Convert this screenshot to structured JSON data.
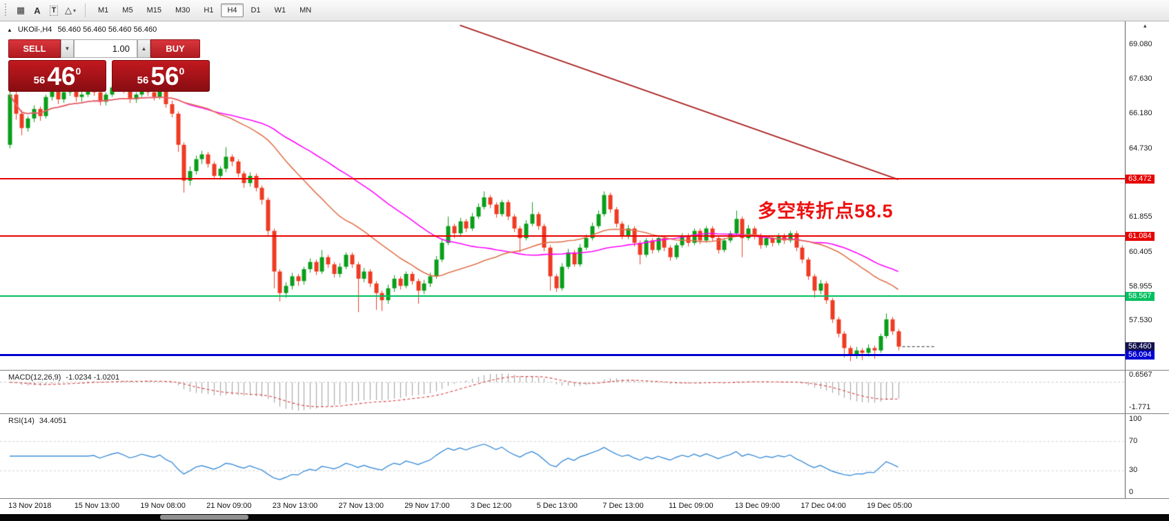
{
  "colors": {
    "bull": "#0a9e1a",
    "bear": "#ee3b22",
    "ma_slow": "#ff00ff",
    "ma_fast": "#e0714a",
    "trend": "#a81f1f",
    "macd_hist": "#a8a8a8",
    "macd_signal": "#d94040",
    "macd_zero": "#c6c6c6",
    "rsi_line": "#3e8ed8",
    "rsi_level": "#cfcfcf",
    "line_red": "#e60000",
    "line_green": "#00bf5f",
    "line_blue": "#0000cd",
    "price_marker": "#11114e",
    "current_dash": "#222222",
    "annotation_red": "#ee1111"
  },
  "toolbar": {
    "tools": [
      {
        "glyph": "▦",
        "name": "objects-grid-icon"
      },
      {
        "glyph": "A",
        "name": "text-tool-icon"
      },
      {
        "glyph": "T",
        "name": "text-label-tool-icon",
        "boxed": true
      },
      {
        "glyph": "△",
        "name": "shapes-tool-icon",
        "dropdown": true
      }
    ],
    "dropdown_glyph": "▾",
    "timeframes": [
      {
        "label": "M1"
      },
      {
        "label": "M5"
      },
      {
        "label": "M15"
      },
      {
        "label": "M30"
      },
      {
        "label": "H1"
      },
      {
        "label": "H4",
        "active": true
      },
      {
        "label": "D1"
      },
      {
        "label": "W1"
      },
      {
        "label": "MN"
      }
    ]
  },
  "chart": {
    "icon_glyph": "▲",
    "axis_icon": "▴",
    "symbol": "UKOil-,H4",
    "ohlc_line": "56.460 56.460 56.460 56.460",
    "current_price": 56.46,
    "annotation": {
      "text": "多空转折点58.5",
      "color": "#ee1111"
    },
    "trade_panel": {
      "sell": "SELL",
      "buy": "BUY",
      "volume": "1.00",
      "down_glyph": "▼",
      "up_glyph": "▲",
      "bid": {
        "prefix": "56",
        "big": "46",
        "sup": "0"
      },
      "ask": {
        "prefix": "56",
        "big": "56",
        "sup": "0"
      }
    },
    "price_axis": {
      "ticks": [
        {
          "text": "69.080",
          "price": 69.08
        },
        {
          "text": "67.630",
          "price": 67.63
        },
        {
          "text": "66.180",
          "price": 66.18
        },
        {
          "text": "64.730",
          "price": 64.73
        },
        {
          "text": "61.855",
          "price": 61.855
        },
        {
          "text": "60.405",
          "price": 60.405
        },
        {
          "text": "58.955",
          "price": 58.955
        },
        {
          "text": "57.530",
          "price": 57.53
        }
      ],
      "line_labels": [
        {
          "text": "63.472",
          "price": 63.472,
          "bg": "#e60000"
        },
        {
          "text": "61.084",
          "price": 61.084,
          "bg": "#e60000"
        },
        {
          "text": "58.567",
          "price": 58.567,
          "bg": "#00bf5f"
        },
        {
          "text": "56.460",
          "price": 56.46,
          "bg": "#11114e"
        },
        {
          "text": "56.094",
          "price": 56.094,
          "bg": "#0000d2"
        }
      ]
    },
    "hlines": [
      {
        "price": 63.472,
        "color": "#e60000",
        "w": 2
      },
      {
        "price": 61.084,
        "color": "#e60000",
        "w": 2
      },
      {
        "price": 58.567,
        "color": "#00bf5f",
        "w": 2
      },
      {
        "price": 56.094,
        "color": "#0000cd",
        "w": 3
      }
    ],
    "trendline": {
      "bar1": 75,
      "price1": 69.9,
      "bar2": 148,
      "price2": 63.45
    },
    "mas": [
      {
        "period": 45,
        "color": "#ff00ff"
      },
      {
        "period": 28,
        "color": "#e0714a"
      }
    ],
    "candles": [
      [
        64.9,
        67.35,
        64.75,
        67.0
      ],
      [
        67.0,
        67.2,
        65.95,
        66.2
      ],
      [
        66.2,
        66.35,
        65.3,
        65.6
      ],
      [
        65.6,
        66.1,
        65.45,
        66.0
      ],
      [
        66.0,
        66.55,
        65.85,
        66.4
      ],
      [
        66.4,
        66.5,
        65.9,
        66.1
      ],
      [
        66.1,
        67.0,
        66.0,
        66.9
      ],
      [
        66.9,
        67.35,
        66.75,
        67.2
      ],
      [
        67.2,
        67.3,
        66.6,
        66.8
      ],
      [
        66.8,
        67.25,
        66.65,
        67.1
      ],
      [
        67.1,
        67.45,
        66.95,
        67.3
      ],
      [
        67.3,
        67.4,
        66.7,
        66.9
      ],
      [
        66.9,
        67.15,
        66.7,
        67.0
      ],
      [
        67.0,
        67.55,
        66.9,
        67.4
      ],
      [
        67.4,
        67.5,
        66.95,
        67.1
      ],
      [
        67.1,
        67.2,
        66.55,
        66.7
      ],
      [
        66.7,
        67.1,
        66.55,
        67.0
      ],
      [
        67.0,
        67.4,
        66.9,
        67.3
      ],
      [
        67.3,
        67.6,
        67.15,
        67.5
      ],
      [
        67.5,
        67.55,
        67.05,
        67.2
      ],
      [
        67.2,
        67.3,
        66.65,
        66.8
      ],
      [
        66.8,
        67.1,
        66.65,
        67.0
      ],
      [
        67.0,
        67.4,
        66.9,
        67.3
      ],
      [
        67.3,
        67.4,
        66.95,
        67.1
      ],
      [
        67.1,
        67.2,
        66.75,
        66.9
      ],
      [
        66.9,
        67.3,
        66.8,
        67.2
      ],
      [
        67.2,
        67.25,
        66.45,
        66.6
      ],
      [
        66.6,
        66.75,
        66.05,
        66.2
      ],
      [
        66.2,
        66.3,
        64.6,
        64.9
      ],
      [
        64.9,
        65.0,
        62.9,
        63.4
      ],
      [
        63.4,
        64.0,
        63.2,
        63.8
      ],
      [
        63.8,
        64.45,
        63.65,
        64.3
      ],
      [
        64.3,
        64.65,
        64.1,
        64.5
      ],
      [
        64.5,
        64.6,
        63.95,
        64.1
      ],
      [
        64.1,
        64.2,
        63.45,
        63.6
      ],
      [
        63.6,
        64.0,
        63.45,
        63.9
      ],
      [
        63.9,
        64.8,
        63.75,
        64.4
      ],
      [
        64.4,
        64.5,
        64.0,
        64.2
      ],
      [
        64.2,
        64.3,
        63.55,
        63.7
      ],
      [
        63.7,
        63.8,
        63.1,
        63.3
      ],
      [
        63.3,
        63.75,
        63.15,
        63.6
      ],
      [
        63.6,
        63.7,
        62.95,
        63.1
      ],
      [
        63.1,
        63.2,
        62.4,
        62.6
      ],
      [
        62.6,
        62.7,
        61.1,
        61.3
      ],
      [
        61.3,
        61.4,
        58.9,
        59.6
      ],
      [
        59.6,
        59.7,
        58.35,
        58.7
      ],
      [
        58.7,
        59.15,
        58.5,
        59.0
      ],
      [
        59.0,
        59.55,
        58.85,
        59.4
      ],
      [
        59.4,
        59.5,
        59.0,
        59.2
      ],
      [
        59.2,
        59.8,
        59.05,
        59.7
      ],
      [
        59.7,
        60.15,
        59.55,
        60.0
      ],
      [
        60.0,
        60.1,
        59.45,
        59.6
      ],
      [
        59.6,
        60.5,
        59.5,
        60.2
      ],
      [
        60.2,
        60.3,
        59.75,
        59.9
      ],
      [
        59.9,
        60.0,
        59.35,
        59.5
      ],
      [
        59.5,
        59.95,
        59.35,
        59.8
      ],
      [
        59.8,
        60.4,
        59.7,
        60.3
      ],
      [
        60.3,
        60.4,
        59.75,
        59.9
      ],
      [
        59.9,
        60.0,
        57.9,
        59.3
      ],
      [
        59.3,
        59.75,
        59.15,
        59.6
      ],
      [
        59.6,
        59.7,
        58.95,
        59.1
      ],
      [
        59.1,
        59.2,
        58.0,
        58.7
      ],
      [
        58.7,
        58.8,
        57.95,
        58.4
      ],
      [
        58.4,
        59.05,
        58.25,
        58.9
      ],
      [
        58.9,
        59.45,
        58.75,
        59.3
      ],
      [
        59.3,
        59.4,
        58.85,
        59.0
      ],
      [
        59.0,
        59.6,
        58.9,
        59.5
      ],
      [
        59.5,
        59.6,
        59.05,
        59.2
      ],
      [
        59.2,
        59.3,
        58.25,
        58.8
      ],
      [
        58.8,
        59.25,
        58.65,
        59.1
      ],
      [
        59.1,
        59.55,
        58.95,
        59.4
      ],
      [
        59.4,
        60.25,
        59.3,
        60.1
      ],
      [
        60.1,
        60.95,
        60.0,
        60.8
      ],
      [
        60.8,
        61.9,
        60.7,
        61.5
      ],
      [
        61.5,
        61.6,
        61.0,
        61.2
      ],
      [
        61.2,
        61.85,
        61.05,
        61.7
      ],
      [
        61.7,
        61.8,
        61.25,
        61.4
      ],
      [
        61.4,
        62.05,
        61.3,
        61.9
      ],
      [
        61.9,
        62.45,
        61.8,
        62.3
      ],
      [
        62.3,
        62.95,
        62.2,
        62.7
      ],
      [
        62.7,
        62.8,
        62.25,
        62.4
      ],
      [
        62.4,
        62.5,
        61.85,
        62.0
      ],
      [
        62.0,
        62.6,
        61.9,
        62.5
      ],
      [
        62.5,
        62.6,
        61.75,
        61.9
      ],
      [
        61.9,
        62.0,
        61.25,
        61.4
      ],
      [
        61.4,
        61.5,
        60.4,
        61.0
      ],
      [
        61.0,
        61.75,
        60.9,
        61.6
      ],
      [
        61.6,
        62.5,
        61.5,
        62.0
      ],
      [
        62.0,
        62.1,
        61.35,
        61.5
      ],
      [
        61.5,
        61.6,
        60.45,
        60.6
      ],
      [
        60.6,
        60.7,
        58.8,
        59.4
      ],
      [
        59.4,
        59.5,
        58.75,
        58.9
      ],
      [
        58.9,
        59.95,
        58.8,
        59.8
      ],
      [
        59.8,
        60.55,
        59.7,
        60.4
      ],
      [
        60.4,
        60.5,
        59.8,
        59.9
      ],
      [
        59.9,
        60.75,
        59.8,
        60.6
      ],
      [
        60.6,
        61.15,
        60.5,
        61.0
      ],
      [
        61.0,
        61.65,
        60.9,
        61.5
      ],
      [
        61.5,
        62.15,
        61.4,
        62.0
      ],
      [
        62.0,
        62.95,
        61.9,
        62.8
      ],
      [
        62.8,
        62.9,
        62.05,
        62.2
      ],
      [
        62.2,
        62.3,
        61.45,
        61.6
      ],
      [
        61.6,
        61.7,
        60.95,
        61.1
      ],
      [
        61.1,
        61.55,
        60.95,
        61.4
      ],
      [
        61.4,
        61.5,
        60.65,
        60.8
      ],
      [
        60.8,
        60.9,
        59.9,
        60.3
      ],
      [
        60.3,
        61.0,
        60.2,
        60.9
      ],
      [
        60.9,
        61.0,
        60.35,
        60.5
      ],
      [
        60.5,
        61.1,
        60.4,
        61.0
      ],
      [
        61.0,
        61.1,
        60.45,
        60.6
      ],
      [
        60.6,
        60.7,
        60.05,
        60.2
      ],
      [
        60.2,
        60.8,
        60.1,
        60.7
      ],
      [
        60.7,
        61.2,
        60.6,
        61.1
      ],
      [
        61.1,
        61.2,
        60.65,
        60.8
      ],
      [
        60.8,
        61.4,
        60.7,
        61.3
      ],
      [
        61.3,
        61.4,
        60.75,
        60.9
      ],
      [
        60.9,
        61.5,
        60.8,
        61.4
      ],
      [
        61.4,
        61.5,
        60.85,
        61.0
      ],
      [
        61.0,
        61.1,
        60.35,
        60.5
      ],
      [
        60.5,
        61.0,
        60.4,
        60.9
      ],
      [
        60.9,
        61.3,
        60.8,
        61.2
      ],
      [
        61.2,
        62.15,
        61.1,
        61.8
      ],
      [
        61.8,
        61.9,
        60.2,
        61.0
      ],
      [
        61.0,
        61.55,
        60.9,
        61.4
      ],
      [
        61.4,
        61.5,
        60.95,
        61.1
      ],
      [
        61.1,
        61.2,
        60.55,
        60.7
      ],
      [
        60.7,
        61.1,
        60.6,
        61.0
      ],
      [
        61.0,
        61.1,
        60.65,
        60.8
      ],
      [
        60.8,
        61.2,
        60.7,
        61.1
      ],
      [
        61.1,
        61.2,
        60.75,
        60.9
      ],
      [
        60.9,
        61.3,
        60.8,
        61.2
      ],
      [
        61.2,
        61.3,
        60.45,
        60.6
      ],
      [
        60.6,
        60.7,
        59.95,
        60.1
      ],
      [
        60.1,
        60.2,
        59.25,
        59.4
      ],
      [
        59.4,
        59.5,
        58.5,
        58.8
      ],
      [
        58.8,
        59.25,
        58.65,
        59.1
      ],
      [
        59.1,
        59.2,
        58.25,
        58.4
      ],
      [
        58.4,
        58.5,
        57.45,
        57.6
      ],
      [
        57.6,
        57.7,
        56.85,
        57.0
      ],
      [
        57.0,
        57.1,
        56.0,
        56.4
      ],
      [
        56.4,
        56.5,
        55.85,
        56.1
      ],
      [
        56.1,
        56.45,
        55.95,
        56.3
      ],
      [
        56.3,
        56.4,
        55.9,
        56.2
      ],
      [
        56.2,
        56.55,
        56.05,
        56.4
      ],
      [
        56.4,
        56.5,
        55.95,
        56.3
      ],
      [
        56.3,
        57.0,
        56.2,
        56.9
      ],
      [
        56.9,
        57.85,
        56.8,
        57.6
      ],
      [
        57.6,
        57.7,
        56.95,
        57.1
      ],
      [
        57.1,
        57.2,
        56.3,
        56.46
      ]
    ]
  },
  "macd": {
    "title": "MACD(12,26,9)",
    "values": "-1.0234 -1.0201",
    "axis": [
      {
        "text": "0.6567",
        "v": 0.6567
      },
      {
        "text": "-1.771",
        "v": -1.771
      }
    ]
  },
  "rsi": {
    "title": "RSI(14)",
    "value": "34.4051",
    "levels": [
      70,
      30
    ],
    "axis": [
      {
        "text": "100",
        "v": 100
      },
      {
        "text": "70",
        "v": 70
      },
      {
        "text": "30",
        "v": 30
      },
      {
        "text": "0",
        "v": 0
      }
    ]
  },
  "time_axis": [
    "13 Nov 2018",
    "15 Nov 13:00",
    "19 Nov 08:00",
    "21 Nov 09:00",
    "23 Nov 13:00",
    "27 Nov 13:00",
    "29 Nov 17:00",
    "3 Dec 12:00",
    "5 Dec 13:00",
    "7 Dec 13:00",
    "11 Dec 09:00",
    "13 Dec 09:00",
    "17 Dec 04:00",
    "19 Dec 05:00"
  ]
}
